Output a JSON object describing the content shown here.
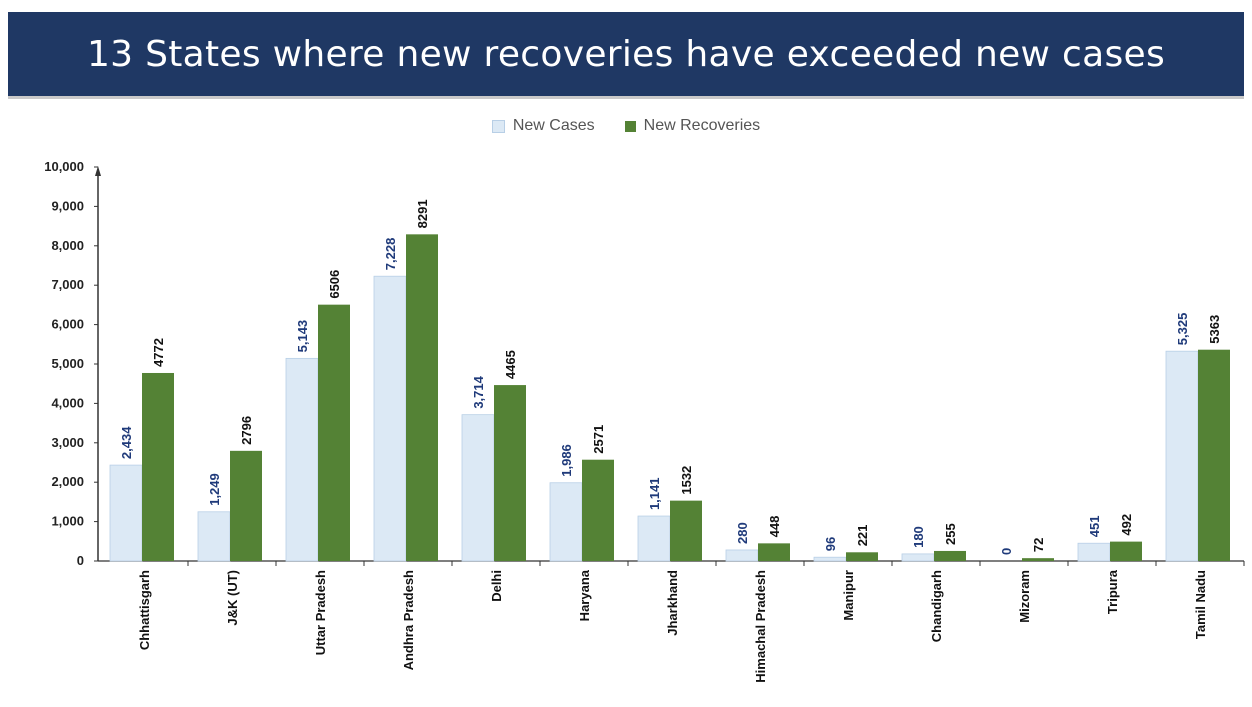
{
  "title": "13 States where new recoveries have exceeded new cases",
  "colors": {
    "title_bg": "#1f3864",
    "cases": "#dce9f5",
    "cases_stroke": "#b8cfe6",
    "recoveries": "#548235"
  },
  "chart_data": {
    "type": "bar",
    "title": "13 States where new recoveries have exceeded new cases",
    "xlabel": "",
    "ylabel": "",
    "ylim": [
      0,
      10000
    ],
    "yticks": [
      "0",
      "1,000",
      "2,000",
      "3,000",
      "4,000",
      "5,000",
      "6,000",
      "7,000",
      "8,000",
      "9,000",
      "10,000"
    ],
    "legend_position": "top-center",
    "grid": false,
    "categories": [
      "Chhattisgarh",
      "J&K (UT)",
      "Uttar Pradesh",
      "Andhra Pradesh",
      "Delhi",
      "Haryana",
      "Jharkhand",
      "Himachal Pradesh",
      "Manipur",
      "Chandigarh",
      "Mizoram",
      "Tripura",
      "Tamil Nadu"
    ],
    "series": [
      {
        "name": "New Cases",
        "values": [
          2434,
          1249,
          5143,
          7228,
          3714,
          1986,
          1141,
          280,
          96,
          180,
          0,
          451,
          5325
        ],
        "labels": [
          "2,434",
          "1,249",
          "5,143",
          "7,228",
          "3,714",
          "1,986",
          "1,141",
          "280",
          "96",
          "180",
          "0",
          "451",
          "5,325"
        ]
      },
      {
        "name": "New Recoveries",
        "values": [
          4772,
          2796,
          6506,
          8291,
          4465,
          2571,
          1532,
          448,
          221,
          255,
          72,
          492,
          5363
        ],
        "labels": [
          "4772",
          "2796",
          "6506",
          "8291",
          "4465",
          "2571",
          "1532",
          "448",
          "221",
          "255",
          "72",
          "492",
          "5363"
        ]
      }
    ]
  }
}
